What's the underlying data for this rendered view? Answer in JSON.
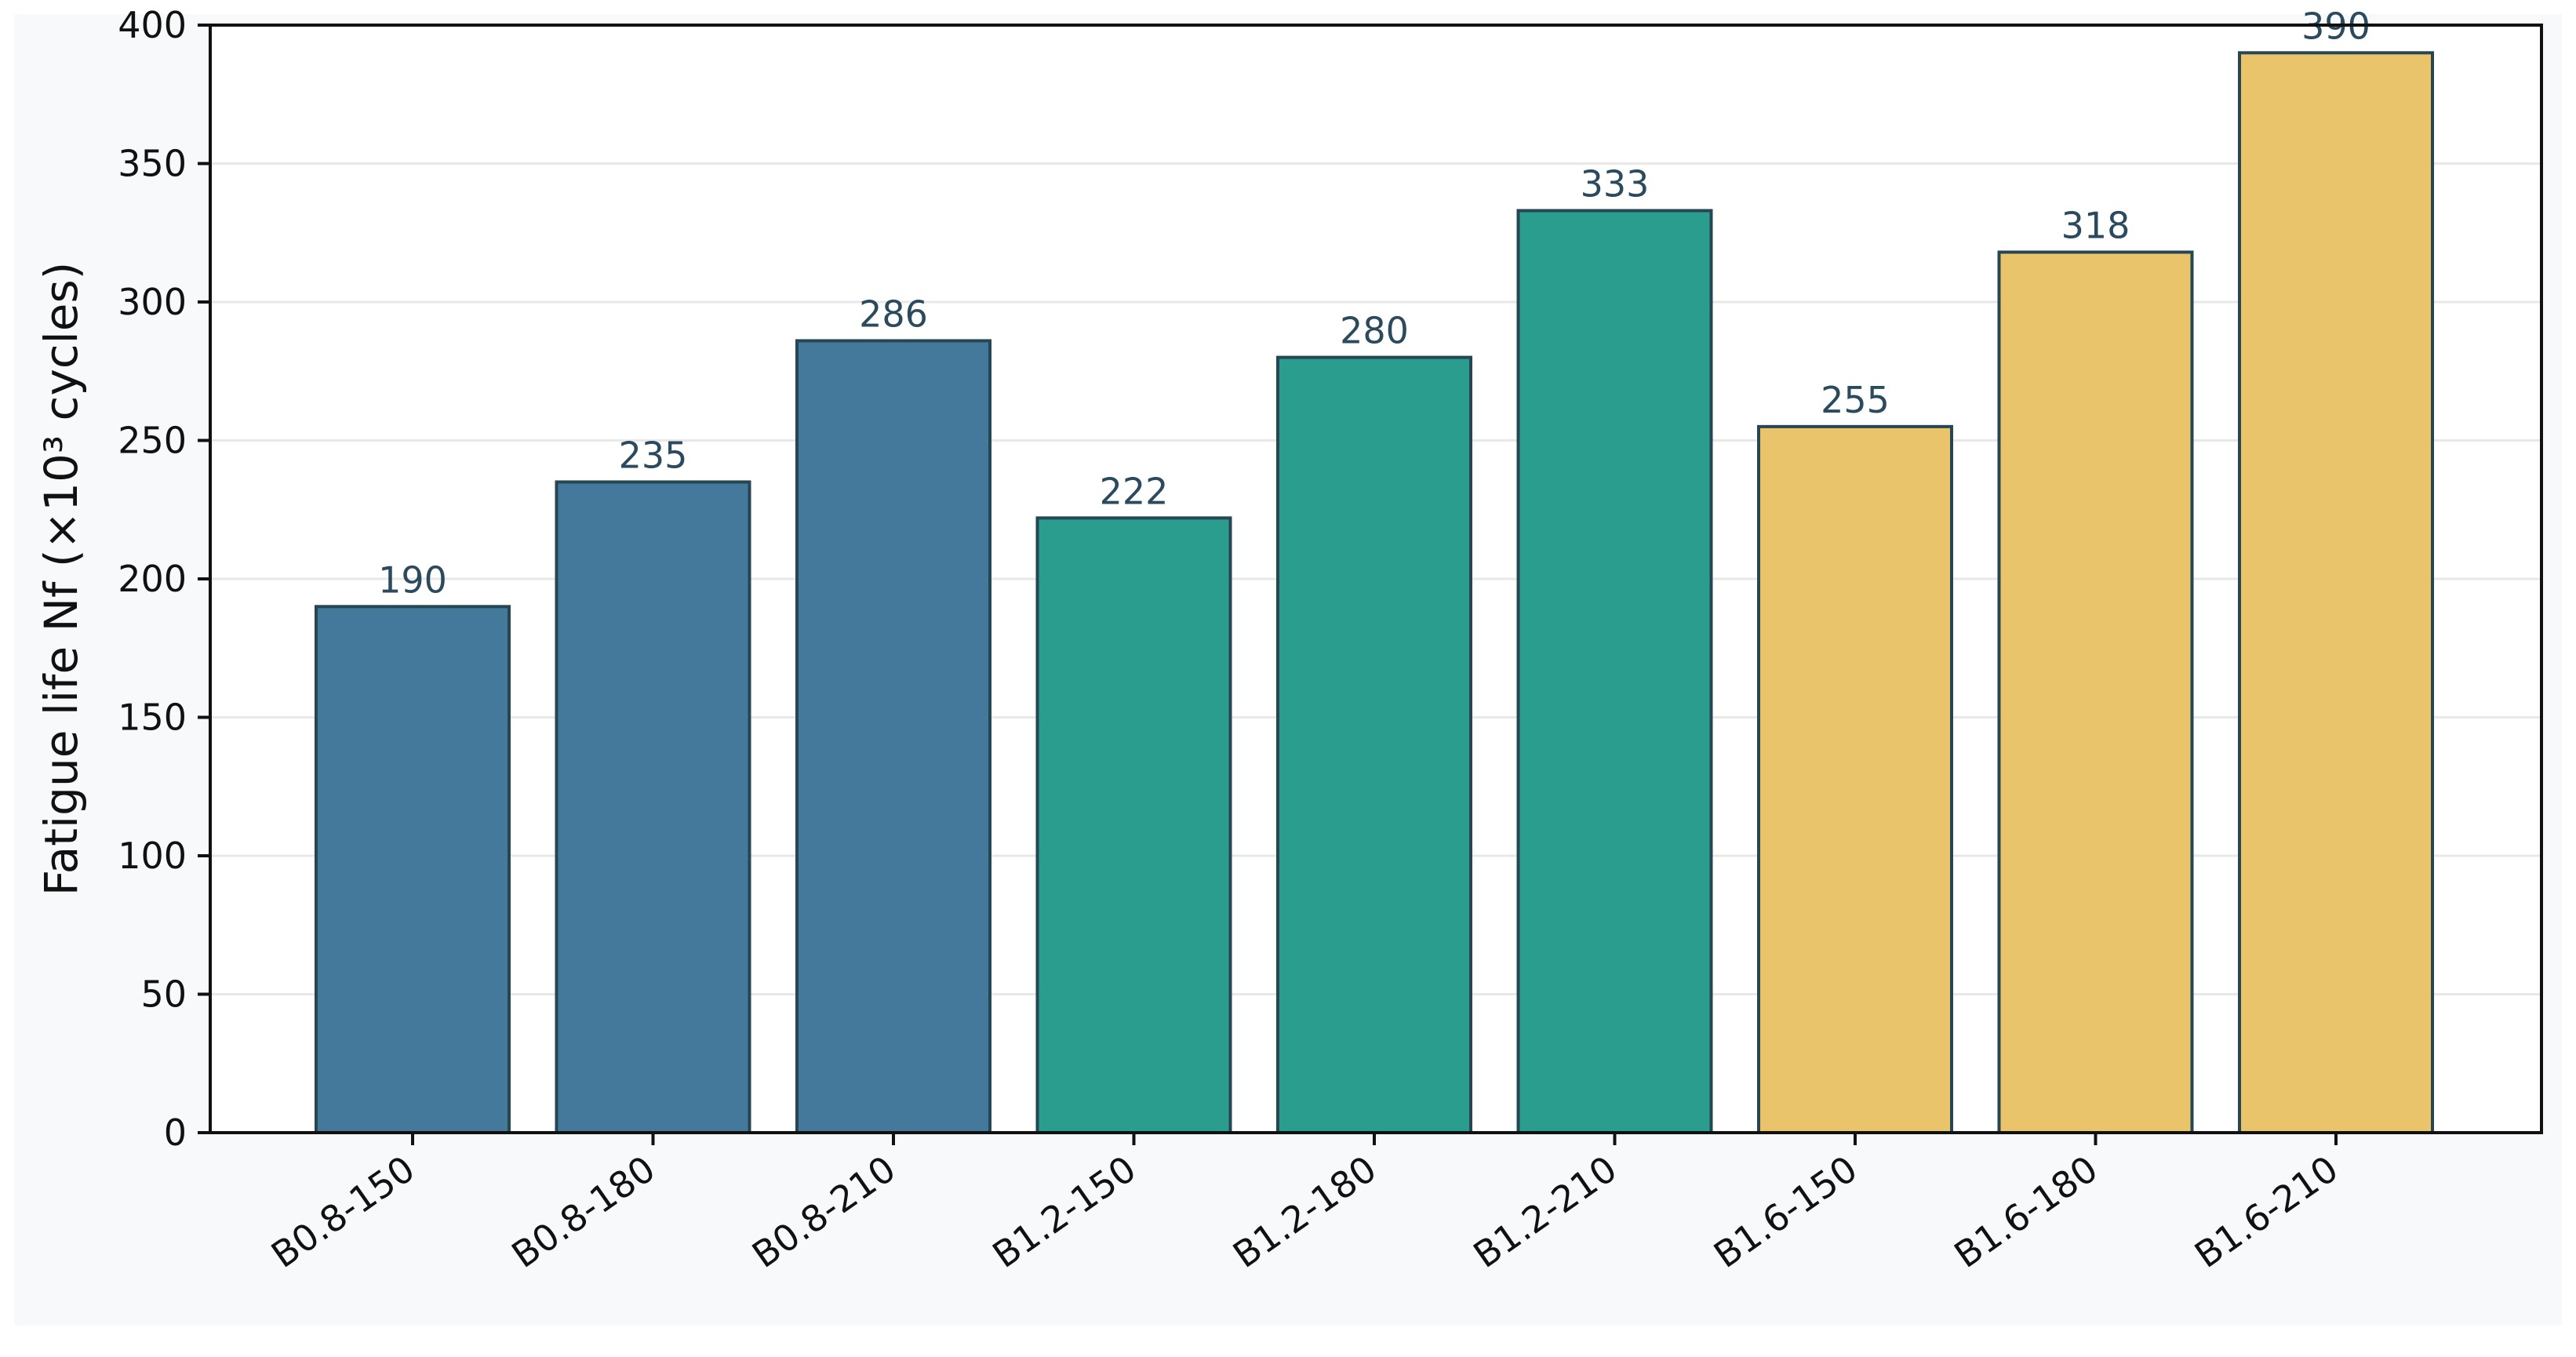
{
  "chart_data": {
    "type": "bar",
    "categories": [
      "B0.8-150",
      "B0.8-180",
      "B0.8-210",
      "B1.2-150",
      "B1.2-180",
      "B1.2-210",
      "B1.6-150",
      "B1.6-180",
      "B1.6-210"
    ],
    "values": [
      190,
      235,
      286,
      222,
      280,
      333,
      255,
      318,
      390
    ],
    "value_labels": [
      "190",
      "235",
      "286",
      "222",
      "280",
      "333",
      "255",
      "318",
      "390"
    ],
    "bar_colors": [
      "#44799b",
      "#44799b",
      "#44799b",
      "#2a9d8f",
      "#2a9d8f",
      "#2a9d8f",
      "#e9c46a",
      "#e9c46a",
      "#e9c46a"
    ],
    "bar_edge_color": "#264653",
    "title": "",
    "xlabel": "",
    "ylabel": "Fatigue life Nf (×10³ cycles)",
    "ylim": [
      0,
      400
    ],
    "yticks": [
      0,
      50,
      100,
      150,
      200,
      250,
      300,
      350,
      400
    ],
    "ytick_labels": [
      "0",
      "50",
      "100",
      "150",
      "200",
      "250",
      "300",
      "350",
      "400"
    ],
    "grid": "horizontal",
    "legend": "none",
    "background_color": "#f7f9fb",
    "plot_background_color": "#ffffff",
    "gridline_color": "#e8e8e8",
    "axis_color": "#111111"
  }
}
